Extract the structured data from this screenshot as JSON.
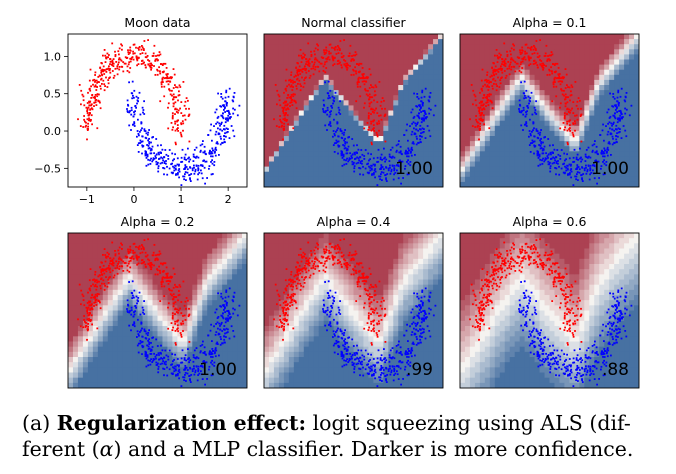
{
  "figure": {
    "caption": {
      "label": "(a)",
      "bold": "Regularization effect:",
      "text_line1_rest": "logit squeezing using ALS (dif-",
      "text_line2_pre": "ferent",
      "alpha_symbol": "α",
      "text_line2_post": ") and a MLP classifier. Darker is more confidence."
    },
    "colors": {
      "red_points": "#ff0000",
      "blue_points": "#0000ff",
      "confident_red": "#a8384a",
      "confident_blue": "#3e6a9e",
      "neutral": "#f5f3f0"
    }
  },
  "chart_data": [
    {
      "type": "scatter",
      "title": "Moon data",
      "xlim": [
        -1.4,
        2.4
      ],
      "ylim": [
        -0.75,
        1.3
      ],
      "xticks": [
        -1,
        0,
        1,
        2
      ],
      "xtick_labels": [
        "−1",
        "0",
        "1",
        "2"
      ],
      "yticks": [
        -0.5,
        0.0,
        0.5,
        1.0
      ],
      "ytick_labels": [
        "−0.5",
        "0.0",
        "0.5",
        "1.0"
      ],
      "series": [
        {
          "class": "upper moon",
          "color": "#ff0000",
          "shape": "arc",
          "center": [
            0,
            0
          ],
          "radius": 1,
          "angle_deg": [
            0,
            180
          ],
          "noise": 0.1
        },
        {
          "class": "lower moon",
          "color": "#0000ff",
          "shape": "arc",
          "center": [
            1,
            0.5
          ],
          "radius": 1,
          "angle_deg": [
            180,
            360
          ],
          "noise": 0.1
        }
      ]
    },
    {
      "type": "heatmap",
      "title": "Normal classifier",
      "annotation": "1.00",
      "confidence": 1.0
    },
    {
      "type": "heatmap",
      "title": "Alpha = 0.1",
      "annotation": "1.00",
      "confidence": 1.0
    },
    {
      "type": "heatmap",
      "title": "Alpha = 0.2",
      "annotation": "1.00",
      "confidence": 1.0
    },
    {
      "type": "heatmap",
      "title": "Alpha = 0.4",
      "annotation": ".99",
      "confidence": 0.99
    },
    {
      "type": "heatmap",
      "title": "Alpha = 0.6",
      "annotation": ".88",
      "confidence": 0.88
    }
  ]
}
